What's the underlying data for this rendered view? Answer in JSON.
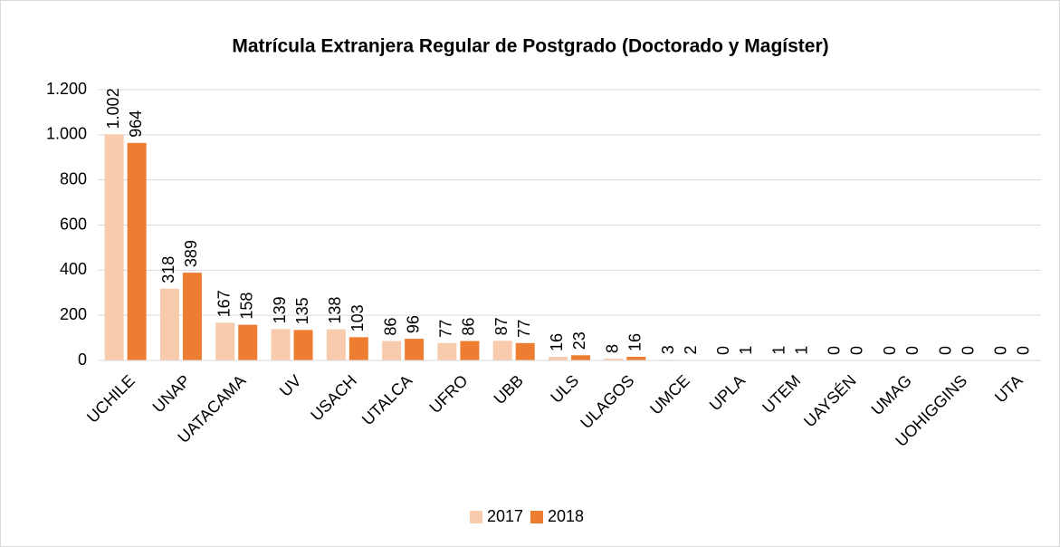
{
  "chart_data": {
    "type": "bar",
    "title": "Matrícula Extranjera Regular de Postgrado (Doctorado y Magíster)",
    "categories": [
      "UCHILE",
      "UNAP",
      "UATACAMA",
      "UV",
      "USACH",
      "UTALCA",
      "UFRO",
      "UBB",
      "ULS",
      "ULAGOS",
      "UMCE",
      "UPLA",
      "UTEM",
      "UAYSÉN",
      "UMAG",
      "UOHIGGINS",
      "UTA"
    ],
    "series": [
      {
        "name": "2017",
        "color": "#f8cbad",
        "values": [
          1002,
          318,
          167,
          139,
          138,
          86,
          77,
          87,
          16,
          8,
          3,
          0,
          1,
          0,
          0,
          0,
          0
        ],
        "value_labels": [
          "1.002",
          "318",
          "167",
          "139",
          "138",
          "86",
          "77",
          "87",
          "16",
          "8",
          "3",
          "0",
          "1",
          "0",
          "0",
          "0",
          "0"
        ]
      },
      {
        "name": "2018",
        "color": "#ed7d31",
        "values": [
          964,
          389,
          158,
          135,
          103,
          96,
          86,
          77,
          23,
          16,
          2,
          1,
          1,
          0,
          0,
          0,
          0
        ]
      }
    ],
    "ylim": [
      0,
      1200
    ],
    "yticks": [
      0,
      200,
      400,
      600,
      800,
      {
        "value": 1000,
        "label": "1.000"
      },
      {
        "value": 1200,
        "label": "1.200"
      }
    ],
    "grid": true,
    "legend": "bottom"
  }
}
